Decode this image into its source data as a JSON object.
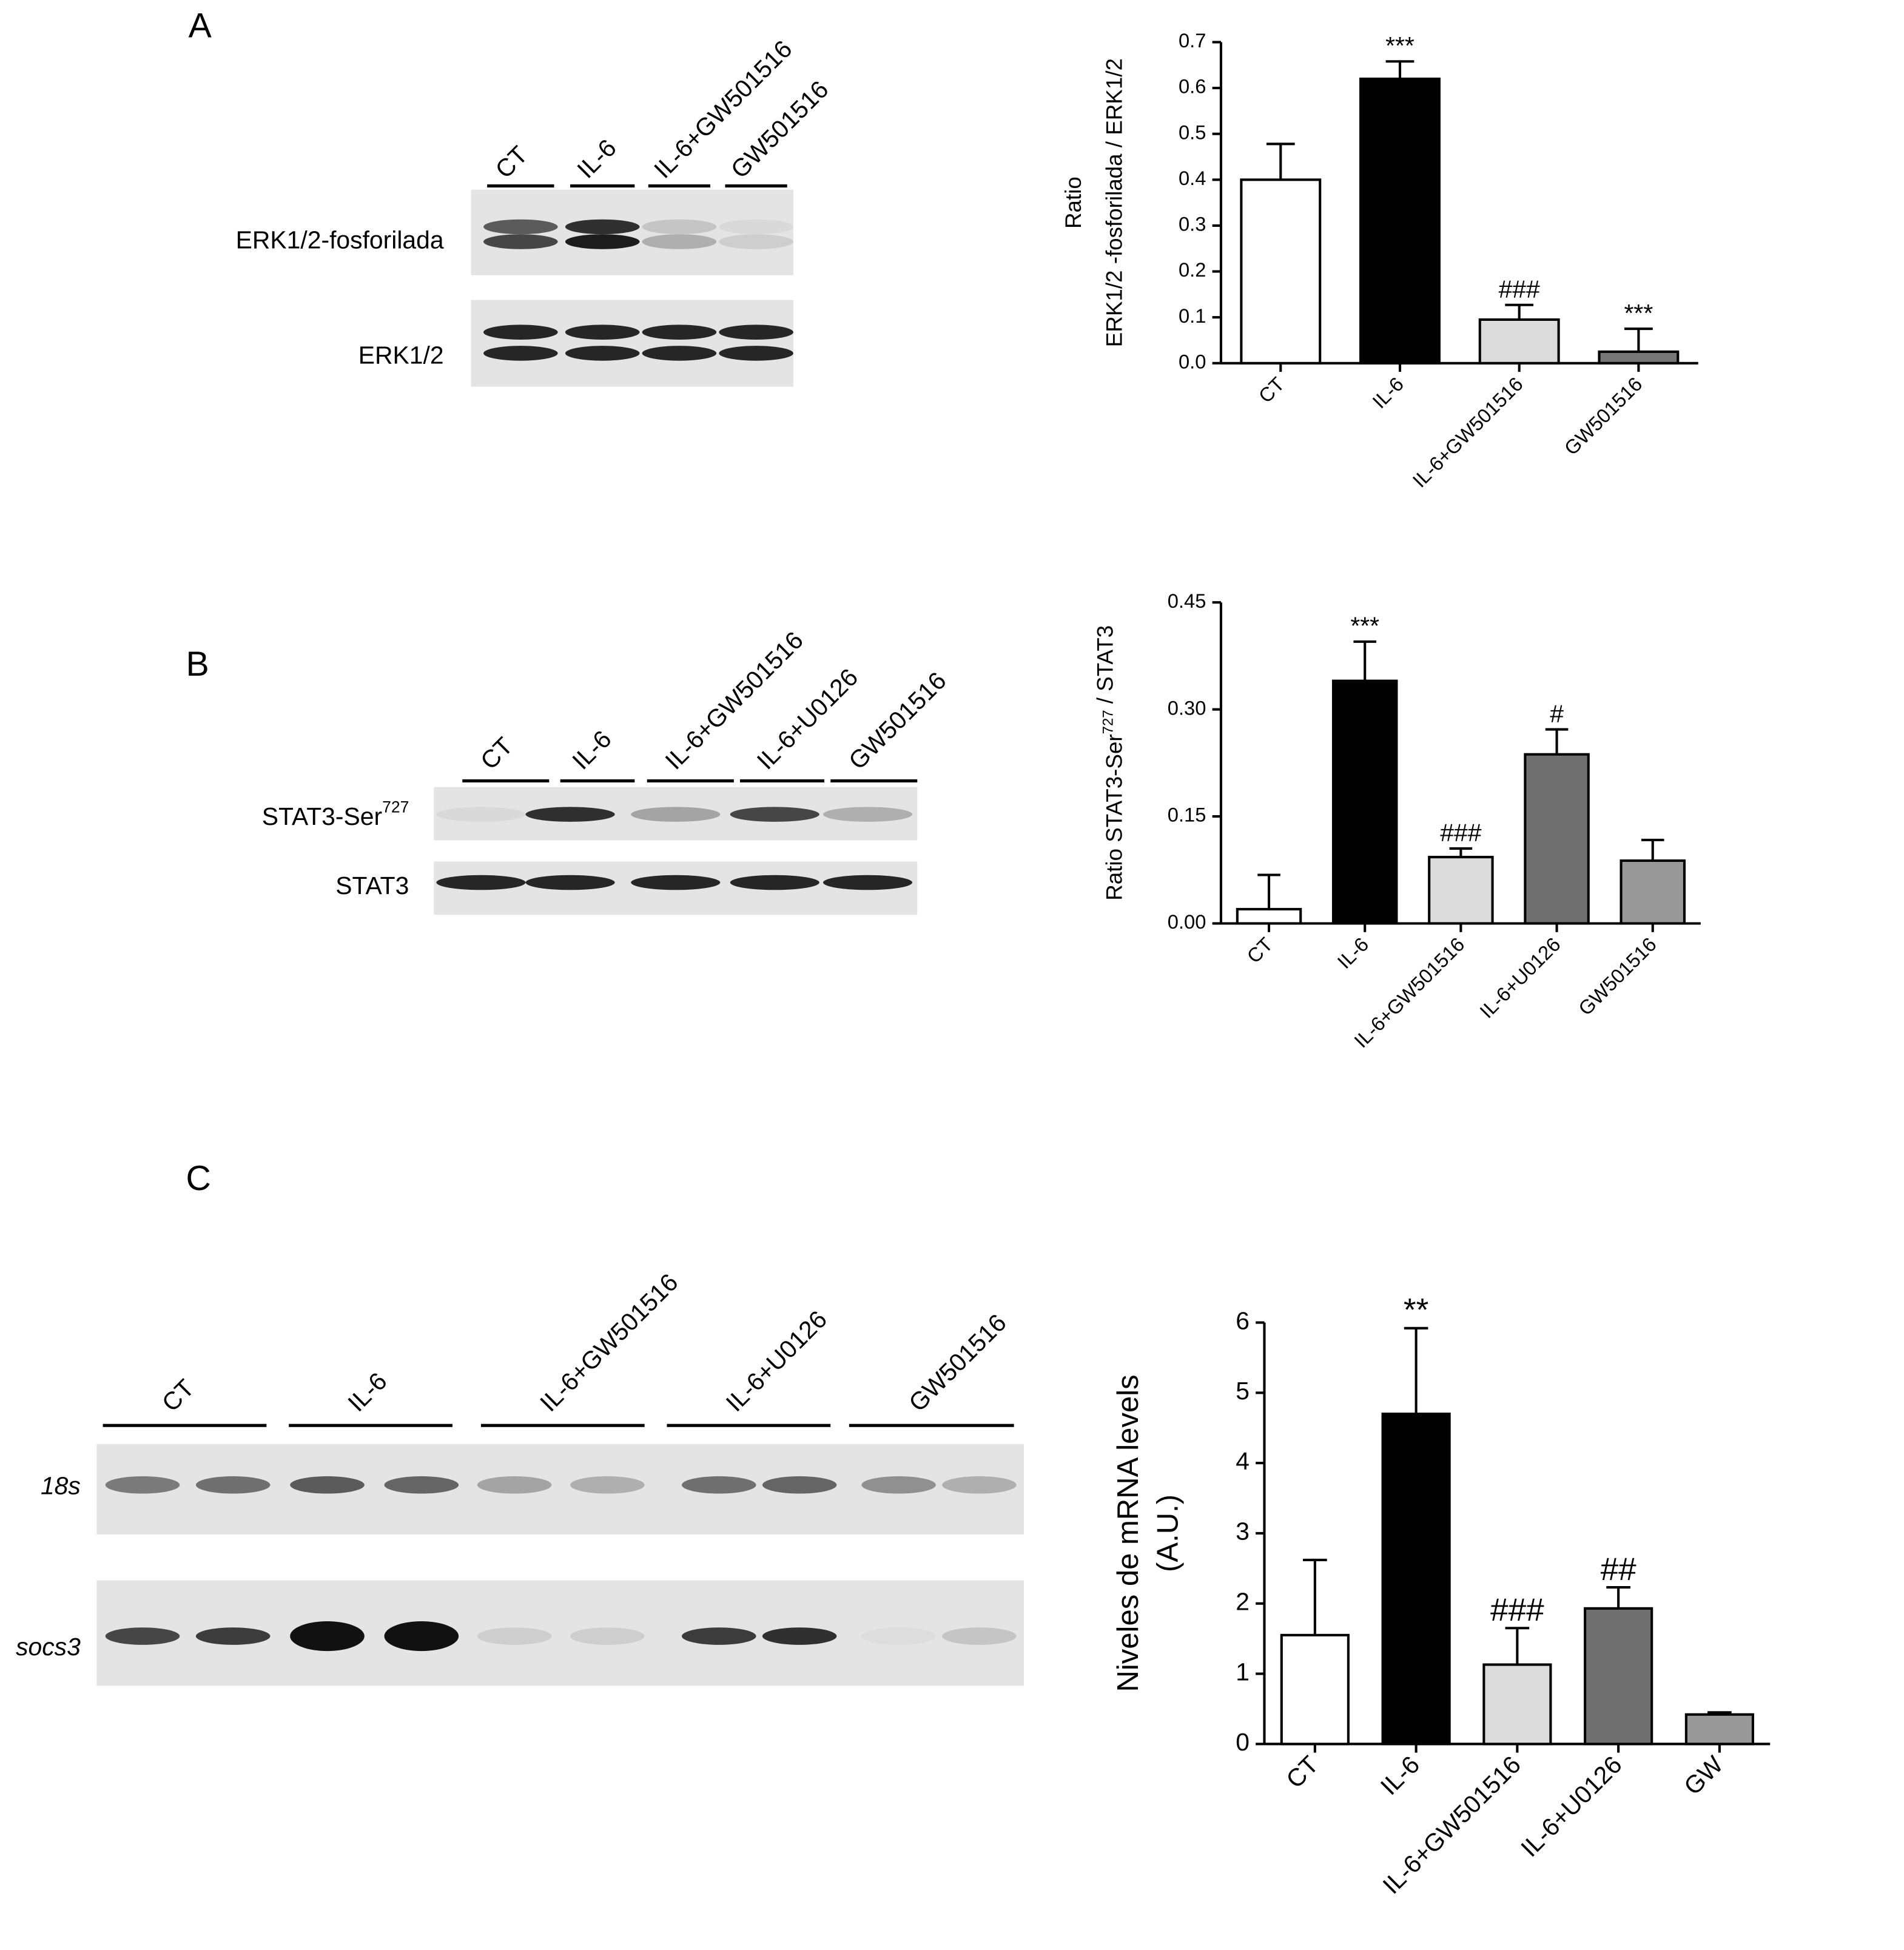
{
  "panels": [
    {
      "label": "A",
      "lanes": [
        "CT",
        "IL-6",
        "IL-6+GW501516",
        "GW501516"
      ],
      "rows": [
        [
          "ERK1/2-fosforilada"
        ],
        [
          "ERK1/2"
        ]
      ]
    },
    {
      "label": "B",
      "lanes": [
        "CT",
        "IL-6",
        "IL-6+GW501516",
        "IL-6+U0126",
        "GW501516"
      ],
      "rows": [
        [
          "STAT3-Ser",
          {
            "sup": "727"
          }
        ],
        [
          "STAT3"
        ]
      ]
    },
    {
      "label": "C",
      "lanes": [
        "CT",
        "IL-6",
        "IL-6+GW501516",
        "IL-6+U0126",
        "GW501516"
      ],
      "rows": [
        [
          "18s"
        ],
        [
          "socs3"
        ]
      ]
    }
  ],
  "chart_data": [
    {
      "type": "bar",
      "y_label": [
        [
          "Ratio"
        ],
        [
          "ERK1/2 -fosforilada / ERK1/2"
        ]
      ],
      "categories": [
        "CT",
        "IL-6",
        "IL-6+GW501516",
        "GW501516"
      ],
      "values": [
        0.4,
        0.62,
        0.095,
        0.025
      ],
      "errors": [
        0.078,
        0.038,
        0.032,
        0.05
      ],
      "colors": [
        "#ffffff",
        "#000000",
        "#dcdcdc",
        "#777777"
      ],
      "annotations": [
        {
          "index": 1,
          "text": "***"
        },
        {
          "index": 2,
          "text": "###"
        },
        {
          "index": 3,
          "text": "***"
        }
      ],
      "ylim": [
        0,
        0.7
      ],
      "yticks": [
        {
          "value": 0,
          "label": "0.0"
        },
        0.1,
        0.2,
        0.3,
        0.4,
        0.5,
        0.6,
        0.7
      ]
    },
    {
      "type": "bar",
      "y_label": [
        [
          "Ratio STAT3-Ser",
          {
            "sup": "727"
          },
          " / STAT3"
        ]
      ],
      "categories": [
        "CT",
        "IL-6",
        "IL-6+GW501516",
        "IL-6+U0126",
        "GW501516"
      ],
      "values": [
        0.02,
        0.34,
        0.093,
        0.237,
        0.088
      ],
      "errors": [
        0.048,
        0.055,
        0.012,
        0.035,
        0.029
      ],
      "colors": [
        "#ffffff",
        "#000000",
        "#dcdcdc",
        "#707070",
        "#999999"
      ],
      "annotations": [
        {
          "index": 1,
          "text": "***"
        },
        {
          "index": 2,
          "text": "###"
        },
        {
          "index": 3,
          "text": "#"
        }
      ],
      "ylim": [
        0,
        0.45
      ],
      "yticks": [
        {
          "value": 0,
          "label": "0.00"
        },
        0.15,
        {
          "value": 0.3,
          "label": "0.30"
        },
        0.45
      ]
    },
    {
      "type": "bar",
      "y_label": [
        [
          "Niveles de mRNA levels"
        ],
        [
          "(A.U.)"
        ]
      ],
      "categories": [
        "CT",
        "IL-6",
        "IL-6+GW501516",
        "IL-6+U0126",
        "GW"
      ],
      "values": [
        1.55,
        4.7,
        1.13,
        1.93,
        0.42
      ],
      "errors": [
        1.07,
        1.22,
        0.52,
        0.3,
        0.03
      ],
      "colors": [
        "#ffffff",
        "#000000",
        "#dcdcdc",
        "#707070",
        "#999999"
      ],
      "annotations": [
        {
          "index": 1,
          "text": "**"
        },
        {
          "index": 2,
          "text": "###"
        },
        {
          "index": 3,
          "text": "##"
        }
      ],
      "ylim": [
        0,
        6
      ],
      "yticks": [
        0,
        1,
        2,
        3,
        4,
        5,
        6
      ]
    }
  ]
}
